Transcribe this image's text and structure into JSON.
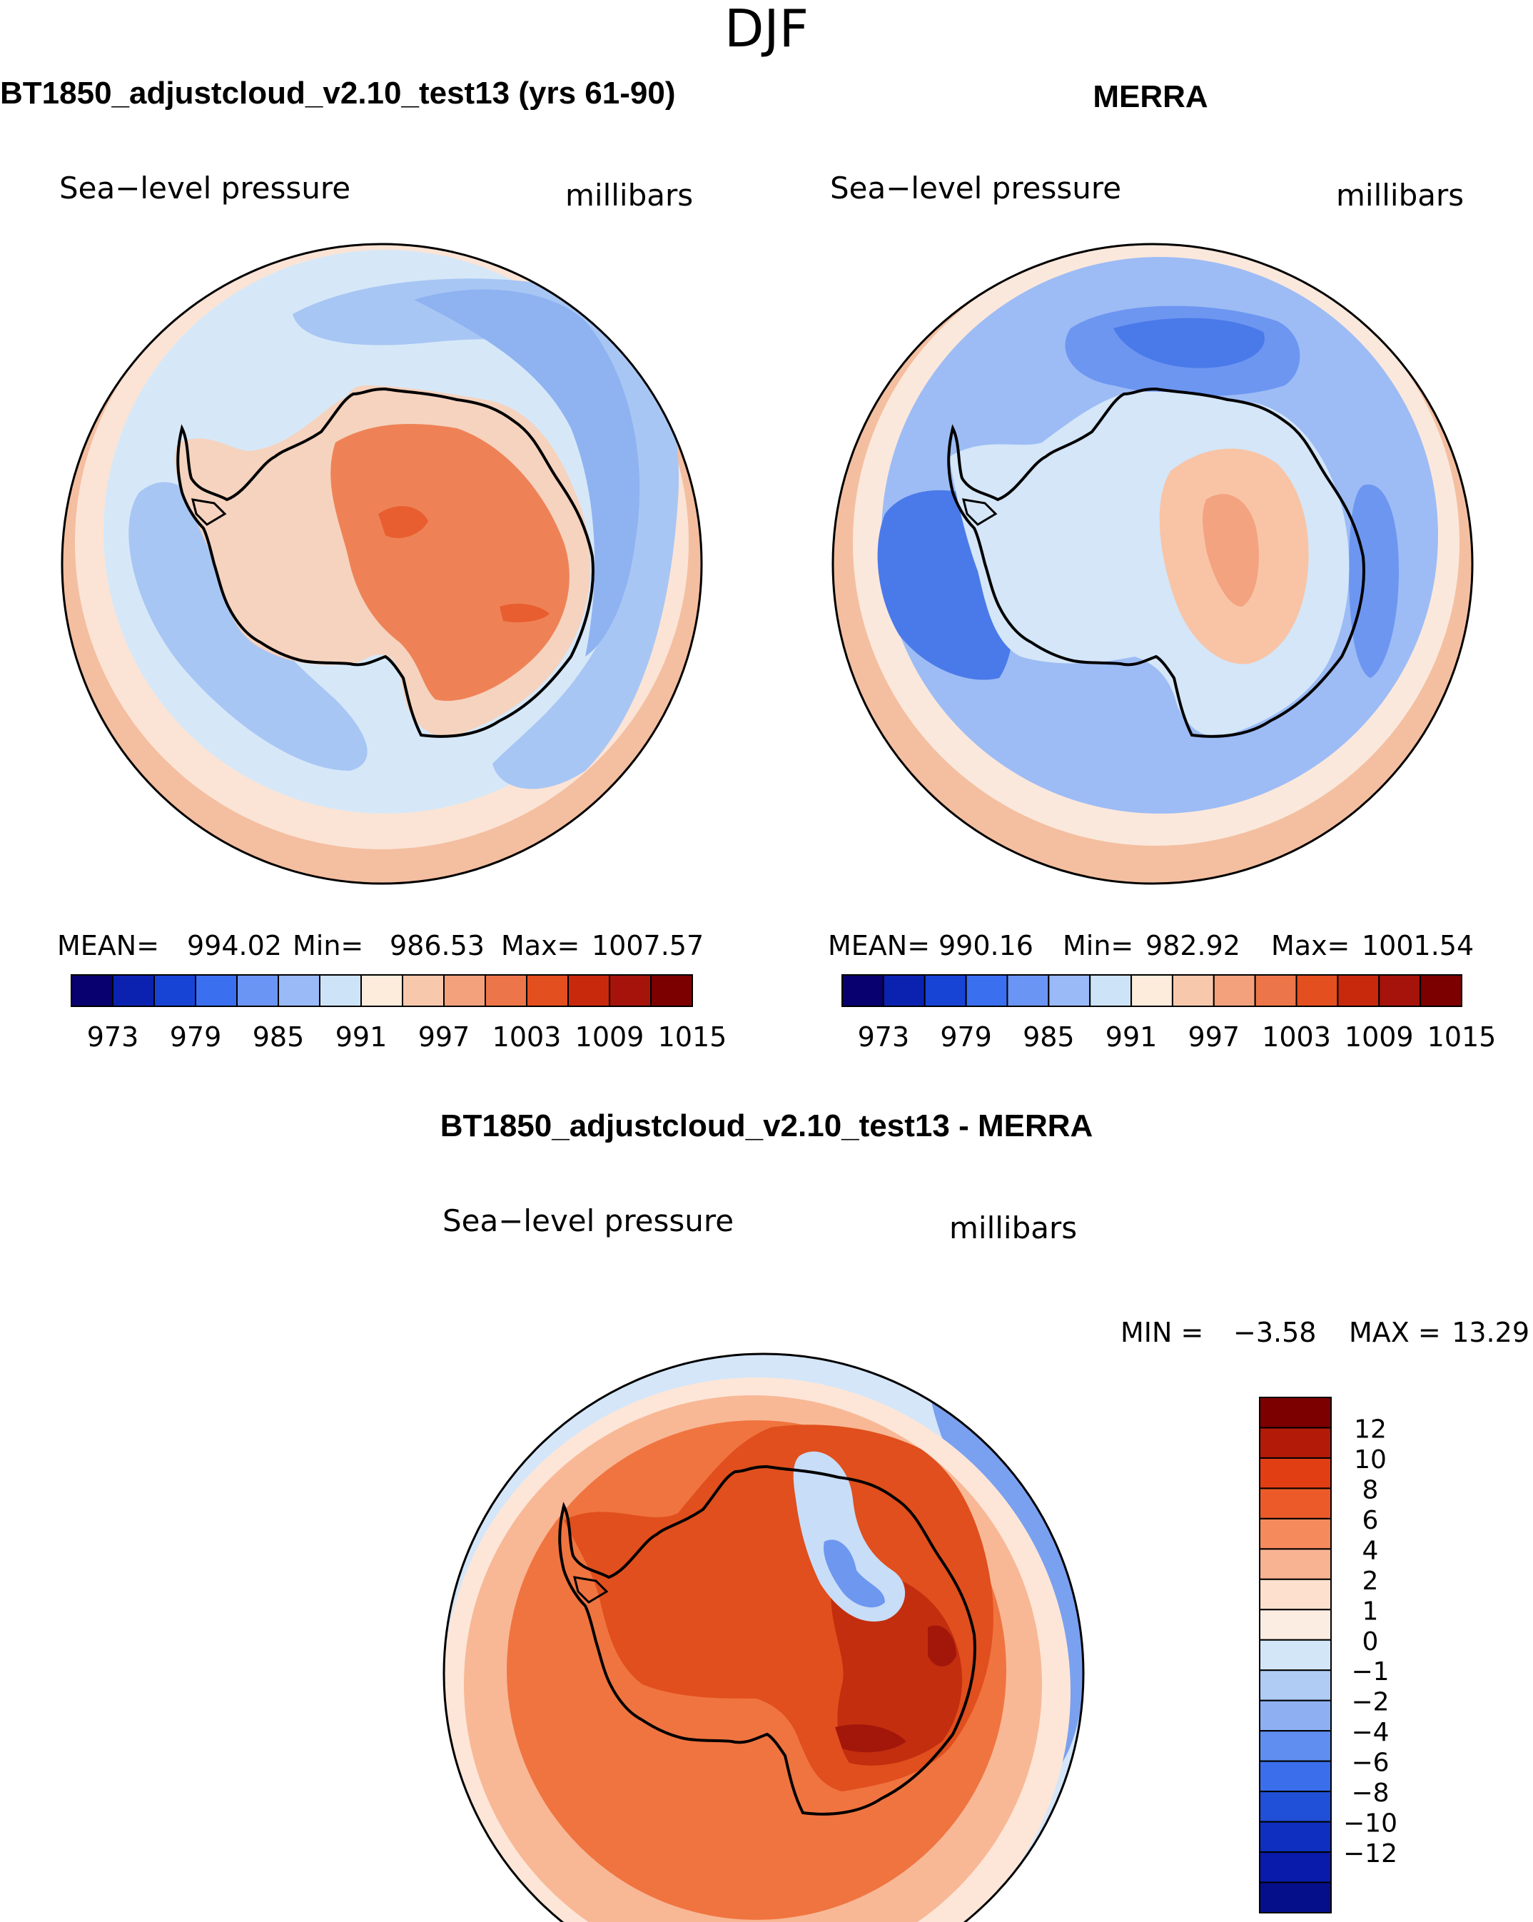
{
  "season_title": "DJF",
  "panels": {
    "model": {
      "title": "BT1850_adjustcloud_v2.10_test13 (yrs 61-90)",
      "variable": "Sea−level pressure",
      "units": "millibars",
      "stats": {
        "mean_label": "MEAN=",
        "mean": "994.02",
        "min_label": "Min=",
        "min": "986.53",
        "max_label": "Max=",
        "max": "1007.57"
      }
    },
    "obs": {
      "title": "MERRA",
      "variable": "Sea−level pressure",
      "units": "millibars",
      "stats": {
        "mean_label": "MEAN=",
        "mean": "990.16",
        "min_label": "Min=",
        "min": "982.92",
        "max_label": "Max=",
        "max": "1001.54"
      }
    },
    "diff": {
      "title": "BT1850_adjustcloud_v2.10_test13 - MERRA",
      "variable": "Sea−level pressure",
      "units": "millibars",
      "stats": {
        "min_label": "MIN =",
        "min": "−3.58",
        "max_label": "MAX =",
        "max": "13.29"
      }
    }
  },
  "colorbars": {
    "abs": {
      "colors": [
        "#08006e",
        "#0b22b0",
        "#1844d6",
        "#3a6fef",
        "#6b95f4",
        "#99b9f7",
        "#cde3f8",
        "#fdebdc",
        "#f8c8ad",
        "#f3a17c",
        "#ec7649",
        "#e34f1e",
        "#c8290d",
        "#a5130b",
        "#7d0000"
      ],
      "tick_labels": [
        "973",
        "979",
        "985",
        "991",
        "997",
        "1003",
        "1009",
        "1015"
      ]
    },
    "diff": {
      "colors": [
        "#7d0000",
        "#b41a08",
        "#e23e14",
        "#ec5a2a",
        "#f58a5c",
        "#f8b392",
        "#fde0cd",
        "#fbede2",
        "#d3e6f7",
        "#b0cbf4",
        "#8eb0f2",
        "#5f8ef0",
        "#3a6eeb",
        "#204fd8",
        "#0e2fc0",
        "#081baa",
        "#050f8a"
      ],
      "labels": [
        "12",
        "10",
        "8",
        "6",
        "4",
        "2",
        "1",
        "0",
        "−1",
        "−2",
        "−4",
        "−6",
        "−8",
        "−10",
        "−12"
      ]
    }
  },
  "maps": {
    "model": {
      "land_fill": "#f5d3bf",
      "core_fill": "#ee8256",
      "peak_fill": "#e85e30",
      "ocean_fill": "#d6e8f8",
      "trough_fill": "#a8c6f4",
      "deep_trough_fill": "#8fb2f1",
      "ring_fill": "#fbe4d5",
      "ring_outer_fill": "#f4bea0"
    },
    "obs": {
      "land_fill": "#d4e6f8",
      "core_fill": "#f8c4a5",
      "peak_fill": "#f3a37f",
      "ocean_fill": "#9dbcf5",
      "trough_fill": "#6d96f1",
      "deep_trough_fill": "#4a7ae9",
      "ring_fill": "#fbe8dc",
      "ring_outer_fill": "#f4bfa0"
    },
    "diff": {
      "land_fill": "#e04f1d",
      "core_fill": "#c32e0f",
      "peak_fill": "#a3170b",
      "ocean_fill": "#f07440",
      "ring_fill": "#f8b896",
      "ring_outer_fill": "#fde6d8",
      "edge_fill": "#d5e6f9",
      "edge_blue_fill": "#7aa0f0",
      "anomaly_fill": "#c8ddf7",
      "anomaly_core_fill": "#6e97f0"
    }
  }
}
